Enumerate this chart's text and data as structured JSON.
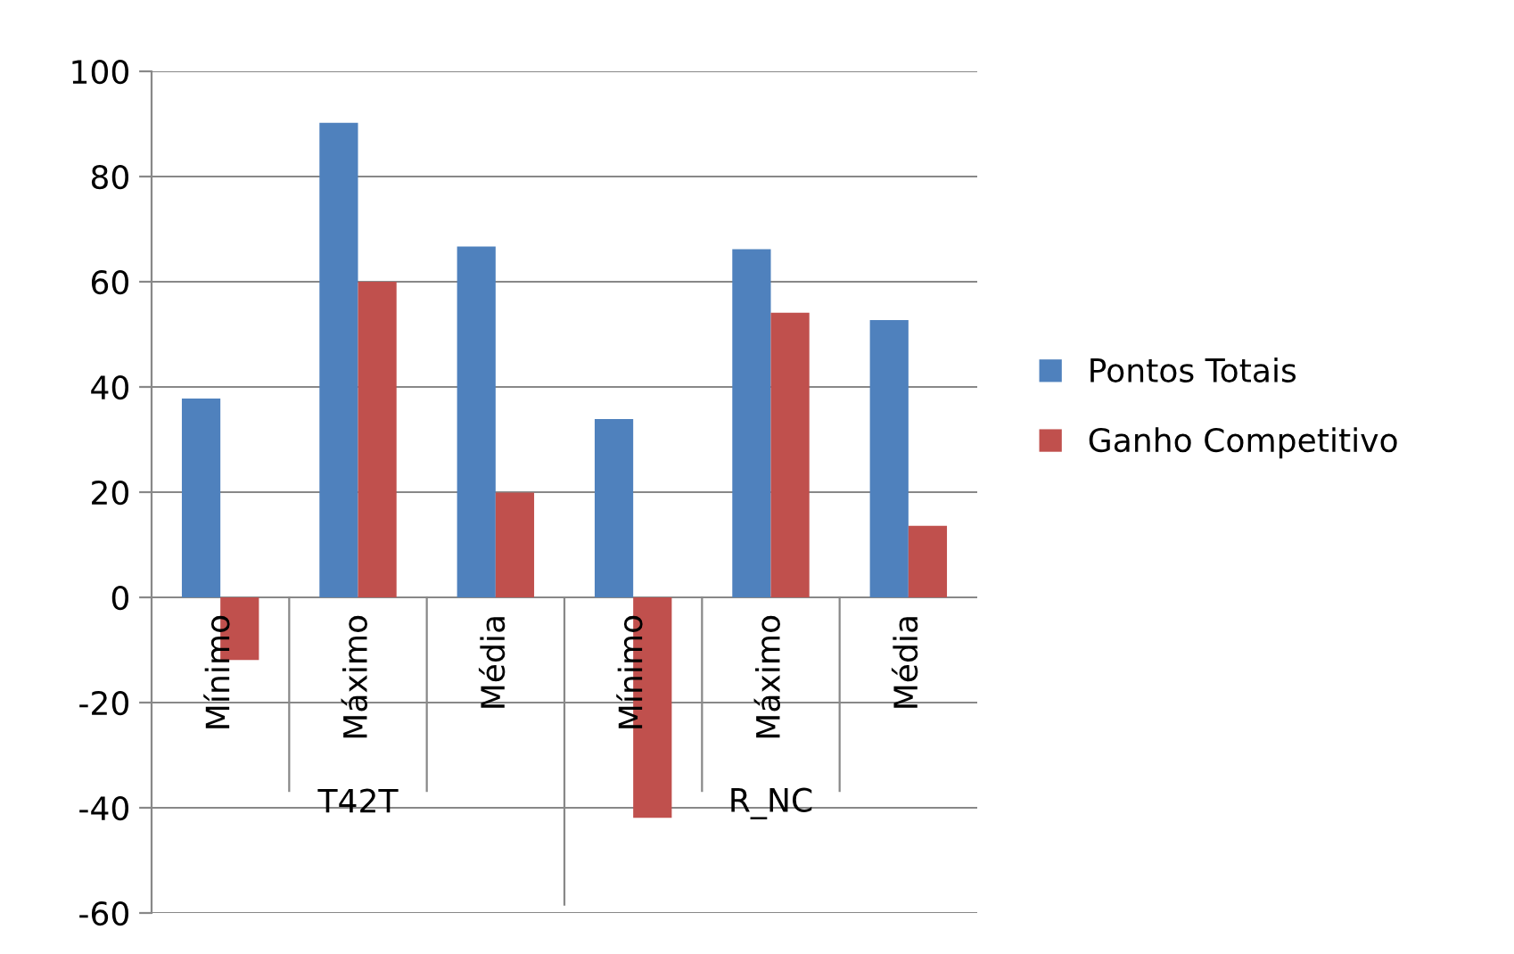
{
  "chart_data": {
    "type": "bar",
    "categories": [
      "Mínimo",
      "Máximo",
      "Média",
      "Mínimo",
      "Máximo",
      "Média"
    ],
    "series": [
      {
        "name": "Pontos Totais",
        "color": "#4f81bd",
        "values": [
          37.8,
          90.2,
          66.7,
          33.9,
          66.2,
          52.7
        ]
      },
      {
        "name": "Ganho Competitivo",
        "color": "#c0504d",
        "values": [
          -11.9,
          60,
          19.9,
          -41.9,
          54.1,
          13.6
        ]
      }
    ],
    "annotations": [
      "T42T",
      "R_NC"
    ],
    "ylim": [
      -60,
      100
    ],
    "yticks": [
      -60,
      -40,
      -20,
      0,
      20,
      40,
      60,
      80,
      100
    ],
    "grid": "y",
    "legend": "right"
  }
}
